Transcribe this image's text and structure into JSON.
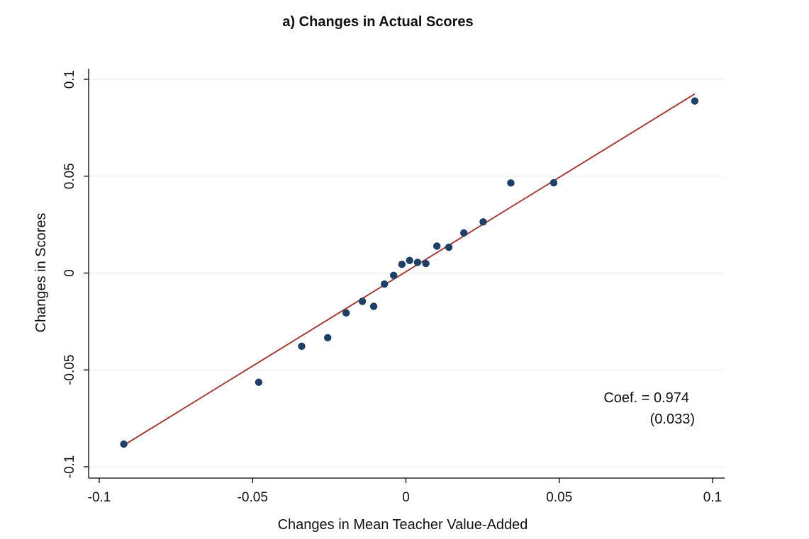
{
  "chart_data": {
    "type": "scatter",
    "title": "a) Changes in Actual Scores",
    "xlabel": "Changes in Mean Teacher Value-Added",
    "ylabel": "Changes in Scores",
    "xlim": [
      -0.1,
      0.1
    ],
    "ylim": [
      -0.1,
      0.1
    ],
    "xticks": [
      -0.1,
      -0.05,
      0,
      0.05,
      0.1
    ],
    "xtick_labels": [
      "-0.1",
      "-0.05",
      "0",
      "0.05",
      "0.1"
    ],
    "yticks": [
      -0.1,
      -0.05,
      0,
      0.05,
      0.1
    ],
    "ytick_labels": [
      "-0.1",
      "-0.05",
      "0",
      "0.05",
      "0.1"
    ],
    "grid": "horizontal",
    "x": [
      -0.092,
      -0.048,
      -0.034,
      -0.0255,
      -0.0195,
      -0.0142,
      -0.0105,
      -0.007,
      -0.004,
      -0.0013,
      0.0012,
      0.0038,
      0.0065,
      0.0101,
      0.014,
      0.0189,
      0.0252,
      0.0342,
      0.0482,
      0.0942
    ],
    "y": [
      -0.0883,
      -0.0564,
      -0.0378,
      -0.0334,
      -0.0206,
      -0.0146,
      -0.0172,
      -0.0057,
      -0.0012,
      0.0045,
      0.0065,
      0.0055,
      0.0049,
      0.0139,
      0.0133,
      0.0207,
      0.0264,
      0.0465,
      0.0466,
      0.0888
    ],
    "fit_line": {
      "slope": 0.974,
      "intercept": 0.0007,
      "x_range": [
        -0.092,
        0.0942
      ]
    },
    "annotation": {
      "line1": "Coef. = 0.974",
      "line2": "(0.033)"
    },
    "colors": {
      "points": "#1f3f66",
      "fit_line": "#a0403c"
    }
  }
}
